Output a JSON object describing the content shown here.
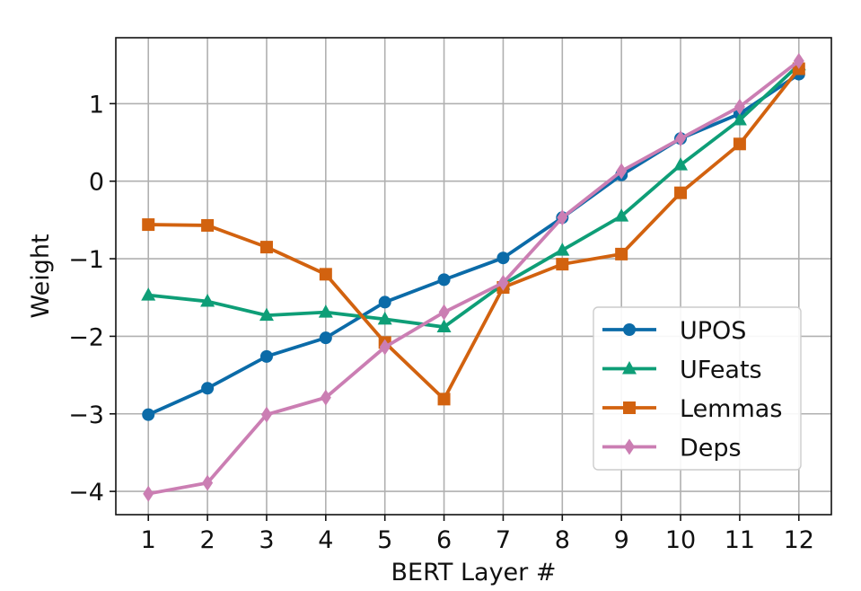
{
  "chart_data": {
    "type": "line",
    "xlabel": "BERT Layer #",
    "ylabel": "Weight",
    "x": [
      1,
      2,
      3,
      4,
      5,
      6,
      7,
      8,
      9,
      10,
      11,
      12
    ],
    "xlim": [
      0.45,
      12.55
    ],
    "ylim": [
      -4.3,
      1.85
    ],
    "yticks": [
      1,
      0,
      -1,
      -2,
      -3,
      -4
    ],
    "ytick_labels": [
      "1",
      "0",
      "−1",
      "−2",
      "−3",
      "−4"
    ],
    "grid": true,
    "legend_position": "lower right",
    "series": [
      {
        "name": "UPOS",
        "color": "#0b6ba8",
        "marker": "circle",
        "values": [
          -3.01,
          -2.67,
          -2.26,
          -2.02,
          -1.56,
          -1.27,
          -0.99,
          -0.47,
          0.08,
          0.55,
          0.87,
          1.38
        ]
      },
      {
        "name": "UFeats",
        "color": "#0e9e77",
        "marker": "triangle",
        "values": [
          -1.47,
          -1.55,
          -1.73,
          -1.69,
          -1.78,
          -1.88,
          -1.33,
          -0.89,
          -0.45,
          0.21,
          0.79,
          1.5
        ]
      },
      {
        "name": "Lemmas",
        "color": "#d2620f",
        "marker": "square",
        "values": [
          -0.56,
          -0.57,
          -0.85,
          -1.2,
          -2.08,
          -2.81,
          -1.37,
          -1.07,
          -0.94,
          -0.15,
          0.48,
          1.45
        ]
      },
      {
        "name": "Deps",
        "color": "#cb7eb3",
        "marker": "diamond",
        "values": [
          -4.03,
          -3.89,
          -3.01,
          -2.79,
          -2.14,
          -1.69,
          -1.31,
          -0.47,
          0.13,
          0.55,
          0.96,
          1.55
        ]
      }
    ]
  }
}
